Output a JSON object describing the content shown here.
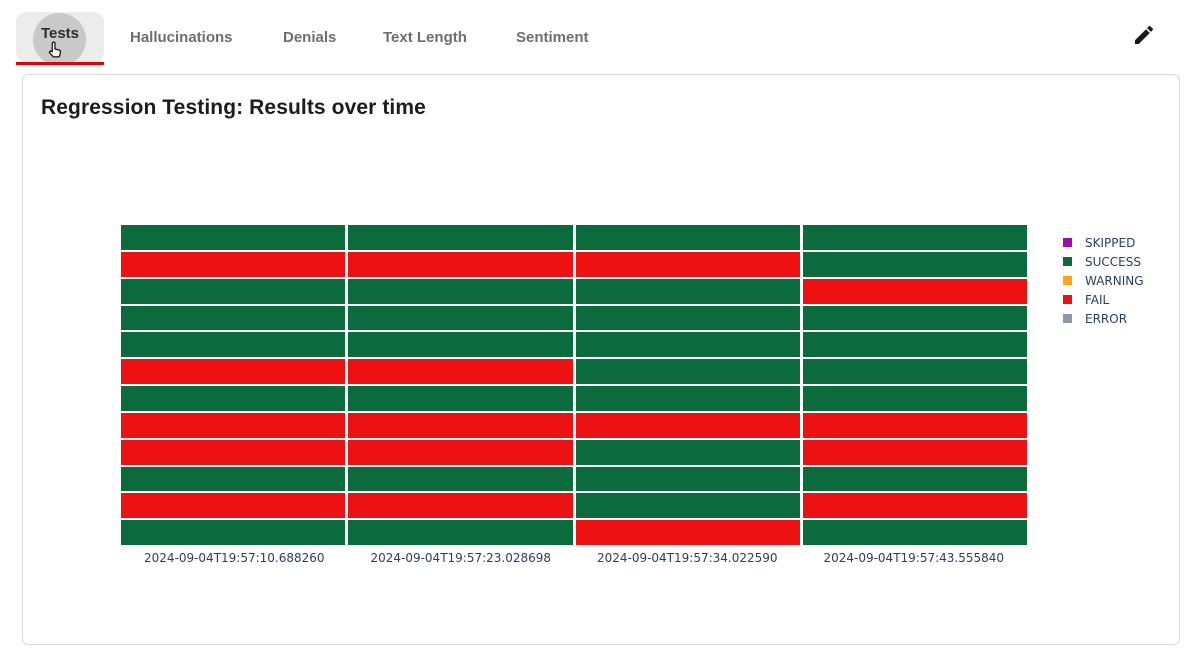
{
  "tabs": {
    "items": [
      {
        "label": "Tests",
        "active": true
      },
      {
        "label": "Hallucinations",
        "active": false
      },
      {
        "label": "Denials",
        "active": false
      },
      {
        "label": "Text Length",
        "active": false
      },
      {
        "label": "Sentiment",
        "active": false
      }
    ],
    "active_underline_color": "#e60000"
  },
  "header": {
    "edit_icon": "pencil-icon"
  },
  "chart_data": {
    "type": "heatmap",
    "title": "Regression Testing: Results over time",
    "x": [
      "2024-09-04T19:57:10.688260",
      "2024-09-04T19:57:23.028698",
      "2024-09-04T19:57:34.022590",
      "2024-09-04T19:57:43.555840"
    ],
    "rows_per_column": 12,
    "series": [
      {
        "timestamp": "2024-09-04T19:57:10.688260",
        "results": [
          "SUCCESS",
          "FAIL",
          "SUCCESS",
          "SUCCESS",
          "SUCCESS",
          "FAIL",
          "SUCCESS",
          "FAIL",
          "FAIL",
          "SUCCESS",
          "FAIL",
          "SUCCESS"
        ]
      },
      {
        "timestamp": "2024-09-04T19:57:23.028698",
        "results": [
          "SUCCESS",
          "FAIL",
          "SUCCESS",
          "SUCCESS",
          "SUCCESS",
          "FAIL",
          "SUCCESS",
          "FAIL",
          "FAIL",
          "SUCCESS",
          "FAIL",
          "SUCCESS"
        ]
      },
      {
        "timestamp": "2024-09-04T19:57:34.022590",
        "results": [
          "SUCCESS",
          "FAIL",
          "SUCCESS",
          "SUCCESS",
          "SUCCESS",
          "SUCCESS",
          "SUCCESS",
          "FAIL",
          "SUCCESS",
          "SUCCESS",
          "SUCCESS",
          "FAIL"
        ]
      },
      {
        "timestamp": "2024-09-04T19:57:43.555840",
        "results": [
          "SUCCESS",
          "SUCCESS",
          "FAIL",
          "SUCCESS",
          "SUCCESS",
          "SUCCESS",
          "SUCCESS",
          "FAIL",
          "FAIL",
          "SUCCESS",
          "FAIL",
          "SUCCESS"
        ]
      }
    ],
    "status_colors": {
      "SKIPPED": "#a20ca6",
      "SUCCESS": "#0b6b3c",
      "WARNING": "#ffa415",
      "FAIL": "#ee1111",
      "ERROR": "#8c9aaa"
    },
    "legend": {
      "position": "right",
      "entries": [
        "SKIPPED",
        "SUCCESS",
        "WARNING",
        "FAIL",
        "ERROR"
      ]
    },
    "axis_label_color": "#2a3f5f",
    "legend_text_color": "#2a3f5f"
  }
}
